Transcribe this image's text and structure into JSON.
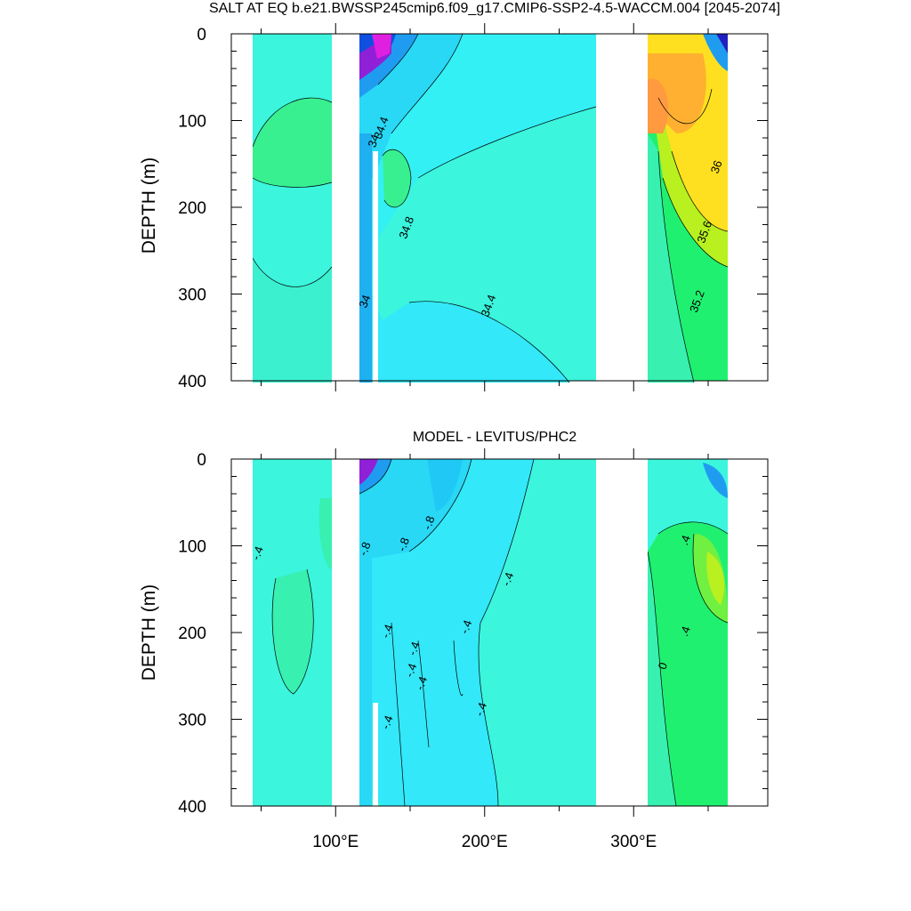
{
  "chart_data": [
    {
      "type": "heatmap",
      "title": "SALT AT EQ b.e21.BWSSP245cmip6.f09_g17.CMIP6-SSP2-4.5-WACCM.004 [2045-2074]",
      "xlabel": "",
      "ylabel": "DEPTH (m)",
      "xlim": [
        30,
        390
      ],
      "ylim": [
        400,
        0
      ],
      "y_reversed": true,
      "y_ticks": [
        "0",
        "100",
        "200",
        "300",
        "400"
      ],
      "x_ticks": [
        "100°E",
        "200°E",
        "300°E"
      ],
      "x_tick_values": [
        100,
        200,
        300
      ],
      "grid": false,
      "land_gaps_lon": [
        [
          30,
          44
        ],
        [
          98,
          118
        ],
        [
          279,
          315
        ],
        [
          370,
          390
        ]
      ],
      "contour_labels": [
        {
          "text": "34",
          "lon": 128,
          "depth": 125
        },
        {
          "text": "34.4",
          "lon": 133,
          "depth": 110
        },
        {
          "text": "34.8",
          "lon": 150,
          "depth": 225
        },
        {
          "text": "34",
          "lon": 122,
          "depth": 310
        },
        {
          "text": "34.4",
          "lon": 205,
          "depth": 315
        },
        {
          "text": "36",
          "lon": 358,
          "depth": 155
        },
        {
          "text": "35.6",
          "lon": 350,
          "depth": 230
        },
        {
          "text": "35.2",
          "lon": 345,
          "depth": 310
        }
      ],
      "notes": "Filled contour section of salinity along the equator, 0-400 m"
    },
    {
      "type": "heatmap",
      "title": "MODEL - LEVITUS/PHC2",
      "xlabel": "",
      "ylabel": "DEPTH (m)",
      "xlim": [
        30,
        390
      ],
      "ylim": [
        400,
        0
      ],
      "y_reversed": true,
      "y_ticks": [
        "0",
        "100",
        "200",
        "300",
        "400"
      ],
      "x_ticks": [
        "100°E",
        "200°E",
        "300°E"
      ],
      "x_tick_values": [
        100,
        200,
        300
      ],
      "grid": false,
      "land_gaps_lon": [
        [
          30,
          44
        ],
        [
          98,
          118
        ],
        [
          279,
          315
        ],
        [
          370,
          390
        ]
      ],
      "contour_labels": [
        {
          "text": "-.4",
          "lon": 50,
          "depth": 110
        },
        {
          "text": "-.8",
          "lon": 122,
          "depth": 105
        },
        {
          "text": "-.8",
          "lon": 148,
          "depth": 100
        },
        {
          "text": "-.8",
          "lon": 165,
          "depth": 75
        },
        {
          "text": "-.4",
          "lon": 218,
          "depth": 140
        },
        {
          "text": "-.4",
          "lon": 137,
          "depth": 200
        },
        {
          "text": "-.4",
          "lon": 190,
          "depth": 195
        },
        {
          "text": "-.4",
          "lon": 155,
          "depth": 220
        },
        {
          "text": "-.4",
          "lon": 153,
          "depth": 245
        },
        {
          "text": "-.4",
          "lon": 160,
          "depth": 260
        },
        {
          "text": "-.4",
          "lon": 200,
          "depth": 290
        },
        {
          "text": "-.4",
          "lon": 137,
          "depth": 305
        },
        {
          "text": ".4",
          "lon": 337,
          "depth": 95
        },
        {
          "text": ".4",
          "lon": 337,
          "depth": 200
        },
        {
          "text": "0",
          "lon": 322,
          "depth": 240
        }
      ],
      "notes": "Filled contour section of salinity difference (model minus observations)"
    }
  ],
  "colors": {
    "cyan_base": "#3bf5dd",
    "light_cyan": "#33f0f5",
    "sky": "#28d8f5",
    "blue": "#1f9cf0",
    "deep_blue": "#1050e0",
    "navy": "#2020c0",
    "purple": "#9020d8",
    "magenta": "#e020e0",
    "green_light": "#38f0b0",
    "green": "#20f070",
    "lime": "#70f040",
    "yellow_green": "#b8f020",
    "yellow": "#ffe020",
    "orange": "#ffb030",
    "dark_orange": "#ff9a40"
  }
}
